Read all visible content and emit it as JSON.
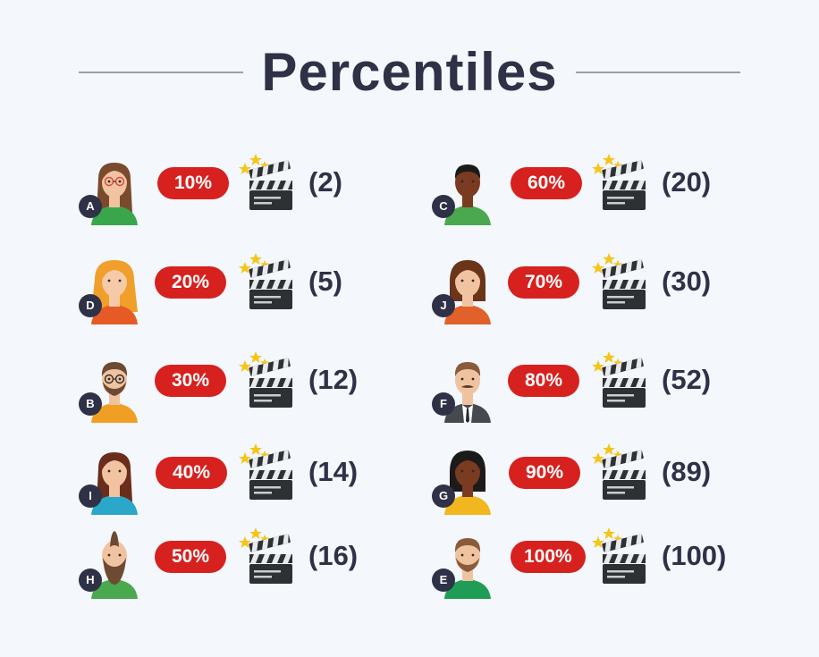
{
  "title": "Percentiles",
  "colors": {
    "badge": "#d6211f",
    "text": "#2f3147",
    "background": "#f4f7fb"
  },
  "entries": [
    {
      "letter": "A",
      "percent": "10%",
      "count": "(2)",
      "avatar": "woman-glasses-avatar"
    },
    {
      "letter": "C",
      "percent": "60%",
      "count": "(20)",
      "avatar": "man-dark-skin-avatar"
    },
    {
      "letter": "D",
      "percent": "20%",
      "count": "(5)",
      "avatar": "woman-blonde-avatar"
    },
    {
      "letter": "J",
      "percent": "70%",
      "count": "(30)",
      "avatar": "woman-short-hair-avatar"
    },
    {
      "letter": "B",
      "percent": "30%",
      "count": "(12)",
      "avatar": "man-glasses-beard-avatar"
    },
    {
      "letter": "F",
      "percent": "80%",
      "count": "(52)",
      "avatar": "man-suit-mustache-avatar"
    },
    {
      "letter": "I",
      "percent": "40%",
      "count": "(14)",
      "avatar": "woman-brown-hair-avatar"
    },
    {
      "letter": "G",
      "percent": "90%",
      "count": "(89)",
      "avatar": "woman-dark-skin-avatar"
    },
    {
      "letter": "H",
      "percent": "50%",
      "count": "(16)",
      "avatar": "man-long-beard-avatar"
    },
    {
      "letter": "E",
      "percent": "100%",
      "count": "(100)",
      "avatar": "man-beard-avatar"
    }
  ],
  "icons": {
    "clapper": "clapperboard-stars-icon"
  }
}
